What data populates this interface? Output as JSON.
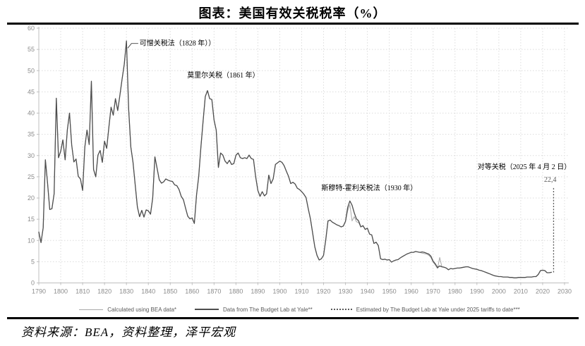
{
  "page": {
    "title": "图表：美国有效关税税率（%）",
    "source_note": "资料来源：BEA，资料整理，泽平宏观"
  },
  "legend": {
    "items": [
      {
        "label": "Calculated using BEA data*",
        "swatch": "solid-thin",
        "color": "#a9a9a9"
      },
      {
        "label": "Data from The Budget Lab at Yale**",
        "swatch": "solid",
        "color": "#4d4d4d"
      },
      {
        "label": "Estimated by The Budget Lab at Yale under 2025 tariffs to date***",
        "swatch": "dotted",
        "color": "#595959"
      }
    ]
  },
  "chart_data": {
    "type": "line",
    "title": "图表：美国有效关税税率（%）",
    "xlabel": "",
    "ylabel": "",
    "xlim": [
      1790,
      2030
    ],
    "ylim": [
      0,
      60
    ],
    "x_ticks": [
      1790,
      1800,
      1810,
      1820,
      1830,
      1840,
      1850,
      1860,
      1870,
      1880,
      1890,
      1900,
      1910,
      1920,
      1930,
      1940,
      1950,
      1960,
      1970,
      1980,
      1990,
      2000,
      2010,
      2020,
      2030
    ],
    "y_ticks": [
      0,
      5,
      10,
      15,
      20,
      25,
      30,
      35,
      40,
      45,
      50,
      55,
      60
    ],
    "grid": "dotted-both",
    "legend_position": "bottom",
    "colors": {
      "grid": "#dcdcdc",
      "axis": "#bfbfbf",
      "tick_label": "#8c8c8c",
      "bea": "#a9a9a9",
      "yale": "#4d4d4d",
      "estimate": "#595959",
      "annotation": "#000000"
    },
    "series": [
      {
        "name": "Calculated using BEA data*",
        "color": "#a9a9a9",
        "width": 1,
        "style": "solid",
        "start_year": 1790,
        "values": [
          12,
          9.5,
          13,
          29,
          23.5,
          17.3,
          17.5,
          21,
          43.5,
          29.5,
          31,
          33.7,
          29,
          36,
          40,
          32.5,
          28.5,
          29.2,
          25.1,
          24.5,
          21.8,
          32,
          36,
          32.6,
          47.5,
          26.7,
          25,
          30.1,
          31.2,
          28.4,
          33.4,
          31.7,
          36.7,
          41.4,
          39.5,
          43.4,
          40.6,
          44.2,
          48,
          51.5,
          57,
          41,
          32,
          28.4,
          23.1,
          17.9,
          15.6,
          17.1,
          15.5,
          17.2,
          17,
          16.2,
          20,
          29.7,
          27,
          24.3,
          23.5,
          23.8,
          24.5,
          24.2,
          24,
          23.9,
          23.1,
          22.9,
          22,
          20.4,
          19.6,
          17.6,
          15.7,
          15.1,
          15.3,
          14,
          20.7,
          25.1,
          32,
          38.1,
          43.9,
          45.3,
          43.4,
          43.2,
          38.4,
          36,
          27.2,
          30.6,
          30.1,
          28.7,
          28.1,
          28.9,
          27.9,
          28.1,
          30.1,
          30.6,
          29.5,
          29.3,
          29.5,
          29.3,
          30.1,
          29.3,
          29.1,
          25,
          21.8,
          20.4,
          21.5,
          20.5,
          21,
          25.4,
          23.4,
          24.5,
          27.9,
          28.3,
          28.7,
          28.4,
          27.6,
          26.3,
          25.1,
          23.4,
          23.7,
          23.3,
          22.3,
          22,
          21.5,
          20.9,
          20.1,
          17.5,
          15.1,
          11.8,
          8.5,
          6.5,
          5.4,
          5.7,
          6.5,
          10.1,
          14.6,
          14.8,
          14.3,
          14,
          13.7,
          13.5,
          13.2,
          13.4,
          14.5,
          17,
          18.4,
          14.6,
          15.6,
          14.4,
          14.2,
          13.2,
          13.5,
          12.6,
          12.9,
          11.5,
          11.3,
          9.3,
          9.6,
          8.8,
          5.7,
          5.5,
          5.6,
          5.4,
          5.5,
          4.9,
          5.2,
          5.4,
          5.5,
          5.9,
          6.2,
          6.5,
          6.8,
          7,
          7.2,
          7.2,
          7.4,
          7.3,
          7.2,
          7,
          6.9,
          6.8,
          6.5,
          6,
          4.9,
          4.2,
          3.4,
          6,
          3.8,
          3.7,
          3.5,
          3.1,
          3.4,
          3.3,
          3.4,
          3.5,
          3.5,
          3.6,
          3.7,
          3.8,
          3.8,
          3.6,
          3.4,
          3.3,
          3.2,
          3,
          2.9,
          2.7,
          2.5,
          2.3,
          2.1,
          1.9,
          1.7,
          1.6,
          1.5,
          1.5,
          1.4,
          1.4,
          1.4,
          1.3,
          1.3,
          1.2,
          1.2,
          1.3,
          1.3,
          1.3,
          1.3,
          1.4,
          1.4,
          1.4,
          1.5,
          1.5,
          2,
          2.9,
          3,
          2.9,
          2.4,
          2.4,
          2.5
        ]
      },
      {
        "name": "Data from The Budget Lab at Yale**",
        "color": "#4d4d4d",
        "width": 1.3,
        "style": "solid",
        "start_year": 1790,
        "values": [
          12,
          9.5,
          13,
          29,
          23.5,
          17.3,
          17.5,
          21,
          43.5,
          29.5,
          31,
          33.7,
          29,
          36,
          40,
          32.5,
          28.5,
          29.2,
          25.1,
          24.5,
          21.8,
          32,
          36,
          32.6,
          47.5,
          26.7,
          25,
          30.1,
          31.2,
          28.4,
          33.4,
          31.7,
          36.7,
          41.4,
          39.5,
          43.4,
          40.6,
          44.2,
          48,
          51.5,
          57,
          41,
          32,
          28.4,
          23.1,
          17.9,
          15.6,
          17.1,
          15.5,
          17.2,
          17,
          16.2,
          20,
          29.7,
          27,
          24.3,
          23.5,
          23.8,
          24.5,
          24.2,
          24,
          23.9,
          23.1,
          22.9,
          22,
          20.4,
          19.6,
          17.6,
          15.7,
          15.1,
          15.3,
          14,
          20.7,
          25.1,
          32,
          38.1,
          43.9,
          45.3,
          43.4,
          43.2,
          38.4,
          36,
          27.2,
          30.6,
          30.1,
          28.7,
          28.1,
          28.9,
          27.9,
          28.1,
          30.1,
          30.6,
          29.5,
          29.3,
          29.5,
          29.3,
          30.1,
          29.3,
          29.1,
          25,
          21.8,
          20.4,
          21.5,
          20.5,
          21,
          25.4,
          23.4,
          24.5,
          27.9,
          28.3,
          28.7,
          28.4,
          27.6,
          26.3,
          25.1,
          23.4,
          23.7,
          23.3,
          22.3,
          22,
          21.5,
          20.9,
          20.1,
          17.5,
          15.1,
          11.8,
          8.5,
          6.5,
          5.4,
          5.7,
          6.5,
          10.1,
          14.6,
          14.8,
          14.3,
          14,
          13.7,
          13.5,
          13.2,
          13.4,
          14.5,
          17.8,
          19.3,
          18.3,
          16.5,
          15.1,
          14.6,
          13.2,
          13.5,
          12.6,
          12.9,
          11.5,
          11.3,
          9.3,
          9.6,
          8.8,
          5.7,
          5.5,
          5.6,
          5.4,
          5.5,
          4.9,
          5.2,
          5.4,
          5.5,
          5.9,
          6.2,
          6.5,
          6.8,
          7,
          7.2,
          7.2,
          7.4,
          7.3,
          7.2,
          7.3,
          7.2,
          7,
          6.8,
          6.3,
          5.1,
          4.5,
          3.6,
          4,
          3.8,
          3.7,
          3.5,
          3.1,
          3.4,
          3.3,
          3.4,
          3.5,
          3.5,
          3.6,
          3.7,
          3.8,
          3.8,
          3.6,
          3.4,
          3.3,
          3.2,
          3,
          2.9,
          2.7,
          2.5,
          2.3,
          2.1,
          1.9,
          1.7,
          1.6,
          1.5,
          1.5,
          1.4,
          1.4,
          1.4,
          1.3,
          1.3,
          1.2,
          1.2,
          1.3,
          1.3,
          1.3,
          1.3,
          1.4,
          1.4,
          1.4,
          1.5,
          1.5,
          2,
          2.9,
          3,
          2.9,
          2.4,
          2.4,
          2.5
        ]
      }
    ],
    "estimate_spike": {
      "name": "Estimated by The Budget Lab at Yale under 2025 tariffs to date***",
      "year": 2025,
      "from": 2.5,
      "to": 22.4,
      "value_label": "22,4",
      "color": "#595959",
      "style": "dotted"
    },
    "annotations": [
      {
        "id": "abominations",
        "text": "可憎关税法（1828 年））",
        "year": 1836,
        "value": 57.4,
        "align": "left",
        "leader": [
          [
            1830.6,
            55.3
          ],
          [
            1832.3,
            56.4
          ],
          [
            1835.4,
            56.4
          ]
        ]
      },
      {
        "id": "morrill",
        "text": "莫里尔关税（1861 年）",
        "year": 1857.7,
        "value": 49.9,
        "align": "left"
      },
      {
        "id": "smoot-hawley",
        "text": "斯穆特-霍利关税法（1930 年）",
        "year": 1919,
        "value": 23.3,
        "align": "left"
      },
      {
        "id": "reciprocal",
        "text": "对等关税（2025 年 4 月 2 日）",
        "year": 2033,
        "value": 28.3,
        "align": "right"
      },
      {
        "id": "spike-value",
        "text": "22,4",
        "year": 2023.5,
        "value": 25.3,
        "align": "center",
        "color": "#595959"
      }
    ]
  }
}
